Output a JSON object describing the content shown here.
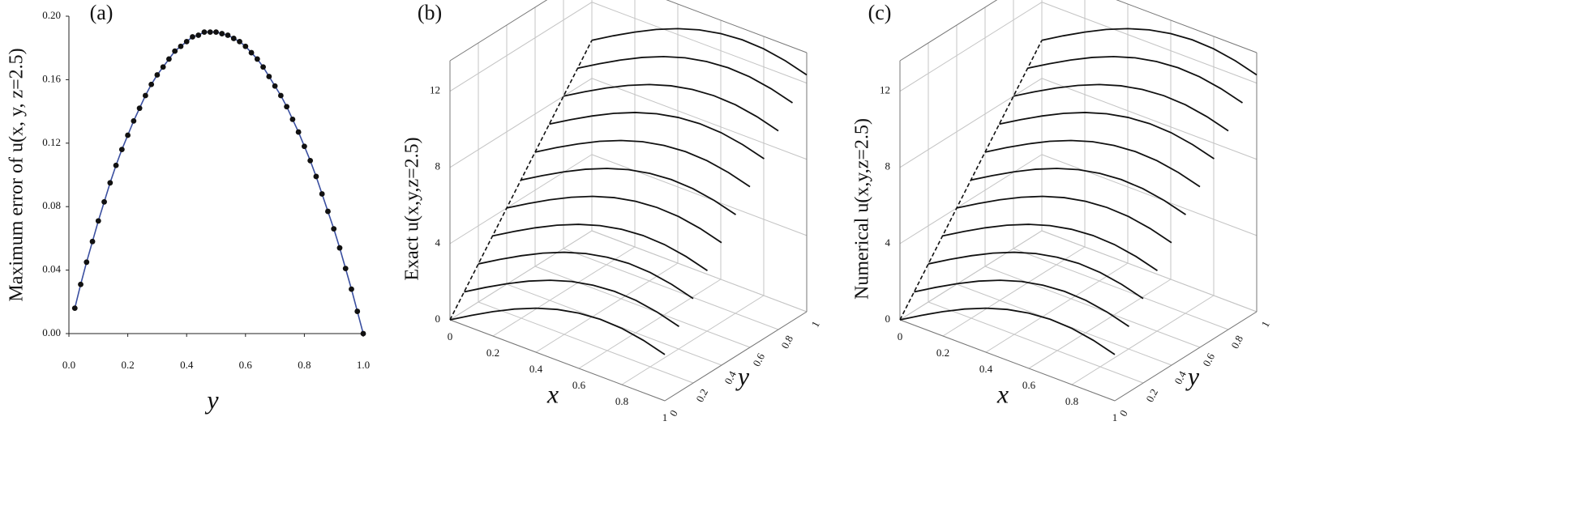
{
  "chart_data": [
    {
      "type": "line",
      "label": "(a)",
      "x_label": "y",
      "y_label": "Maximum error of  u(x, y, z=2.5)",
      "color": "#3a4fa0",
      "marker_color": "#111111",
      "x": [
        0.02,
        0.04,
        0.06,
        0.08,
        0.1,
        0.12,
        0.14,
        0.16,
        0.18,
        0.2,
        0.22,
        0.24,
        0.26,
        0.28,
        0.3,
        0.32,
        0.34,
        0.36,
        0.38,
        0.4,
        0.42,
        0.44,
        0.46,
        0.48,
        0.5,
        0.52,
        0.54,
        0.56,
        0.58,
        0.6,
        0.62,
        0.64,
        0.66,
        0.68,
        0.7,
        0.72,
        0.74,
        0.76,
        0.78,
        0.8,
        0.82,
        0.84,
        0.86,
        0.88,
        0.9,
        0.92,
        0.94,
        0.96,
        0.98,
        1.0
      ],
      "values": [
        0.016,
        0.031,
        0.045,
        0.058,
        0.071,
        0.083,
        0.095,
        0.106,
        0.116,
        0.125,
        0.134,
        0.142,
        0.15,
        0.157,
        0.163,
        0.168,
        0.173,
        0.178,
        0.181,
        0.184,
        0.187,
        0.188,
        0.19,
        0.19,
        0.19,
        0.189,
        0.188,
        0.186,
        0.184,
        0.181,
        0.177,
        0.173,
        0.168,
        0.162,
        0.156,
        0.15,
        0.143,
        0.135,
        0.127,
        0.118,
        0.109,
        0.099,
        0.088,
        0.077,
        0.066,
        0.054,
        0.041,
        0.028,
        0.014,
        0
      ],
      "xlim": [
        0,
        1
      ],
      "xticks": [
        {
          "value": 0,
          "label": "0.0"
        },
        {
          "value": 0.2,
          "label": "0.2"
        },
        {
          "value": 0.4,
          "label": "0.4"
        },
        {
          "value": 0.6,
          "label": "0.6"
        },
        {
          "value": 0.8,
          "label": "0.8"
        },
        {
          "value": 1,
          "label": "1.0"
        }
      ],
      "ylim": [
        0,
        0.2
      ],
      "yticks": [
        {
          "value": 0,
          "label": "0.00"
        },
        {
          "value": 0.04,
          "label": "0.04"
        },
        {
          "value": 0.08,
          "label": "0.08"
        },
        {
          "value": 0.12,
          "label": "0.12"
        },
        {
          "value": 0.16,
          "label": "0.16"
        },
        {
          "value": 0.2,
          "label": "0.20"
        }
      ]
    },
    {
      "type": "surface",
      "label": "(b)",
      "x_label": "x",
      "y_label": "y",
      "z_label": "Exact u(x,y,z=2.5)",
      "color": "#111111",
      "grid": true,
      "x": [
        0,
        0.1,
        0.2,
        0.3,
        0.4,
        0.5,
        0.6,
        0.7,
        0.8,
        0.9,
        1
      ],
      "y": [
        0,
        0.1,
        0.2,
        0.3,
        0.4,
        0.5,
        0.6,
        0.7,
        0.8,
        0.9,
        1
      ],
      "z": [
        [
          0,
          0.66,
          1.28,
          1.84,
          2.31,
          2.67,
          2.9,
          3,
          2.95,
          2.75,
          2.43
        ],
        [
          1,
          1.66,
          2.28,
          2.84,
          3.31,
          3.67,
          3.9,
          4,
          3.95,
          3.75,
          3.43
        ],
        [
          2,
          2.66,
          3.28,
          3.84,
          4.31,
          4.67,
          4.9,
          5,
          4.95,
          4.75,
          4.43
        ],
        [
          3,
          3.66,
          4.28,
          4.84,
          5.31,
          5.67,
          5.9,
          6,
          5.95,
          5.75,
          5.43
        ],
        [
          4,
          4.66,
          5.28,
          5.84,
          6.31,
          6.67,
          6.9,
          7,
          6.95,
          6.75,
          6.43
        ],
        [
          5,
          5.66,
          6.28,
          6.84,
          7.31,
          7.67,
          7.9,
          8,
          7.95,
          7.75,
          7.43
        ],
        [
          6,
          6.66,
          7.28,
          7.84,
          8.31,
          8.67,
          8.9,
          9,
          8.95,
          8.75,
          8.43
        ],
        [
          7,
          7.66,
          8.28,
          8.84,
          9.31,
          9.67,
          9.9,
          10,
          9.95,
          9.75,
          9.43
        ],
        [
          8,
          8.66,
          9.28,
          9.84,
          10.31,
          10.67,
          10.9,
          11,
          10.95,
          10.75,
          10.43
        ],
        [
          9,
          9.66,
          10.28,
          10.84,
          11.31,
          11.67,
          11.9,
          12,
          11.95,
          11.75,
          11.43
        ],
        [
          10,
          10.66,
          11.28,
          11.84,
          12.31,
          12.67,
          12.9,
          13,
          12.95,
          12.75,
          12.43
        ]
      ],
      "xlim": [
        0,
        1
      ],
      "ylim": [
        0,
        1
      ],
      "zlim": [
        0,
        13.6
      ],
      "xticks": [
        0,
        0.2,
        0.4,
        0.6,
        0.8,
        1
      ],
      "yticks": [
        0,
        0.2,
        0.4,
        0.6,
        0.8,
        1
      ],
      "zticks": [
        0,
        4,
        8,
        12
      ]
    },
    {
      "type": "surface",
      "label": "(c)",
      "x_label": "x",
      "y_label": "y",
      "z_label": "Numerical u(x,y,z=2.5)",
      "color": "#111111",
      "grid": true,
      "x": [
        0,
        0.1,
        0.2,
        0.3,
        0.4,
        0.5,
        0.6,
        0.7,
        0.8,
        0.9,
        1
      ],
      "y": [
        0,
        0.1,
        0.2,
        0.3,
        0.4,
        0.5,
        0.6,
        0.7,
        0.8,
        0.9,
        1
      ],
      "z": [
        [
          0,
          0.66,
          1.28,
          1.84,
          2.31,
          2.67,
          2.9,
          3,
          2.95,
          2.75,
          2.43
        ],
        [
          1,
          1.66,
          2.28,
          2.84,
          3.31,
          3.67,
          3.9,
          4,
          3.95,
          3.75,
          3.43
        ],
        [
          2,
          2.66,
          3.28,
          3.84,
          4.31,
          4.67,
          4.9,
          5,
          4.95,
          4.75,
          4.43
        ],
        [
          3,
          3.66,
          4.28,
          4.84,
          5.31,
          5.67,
          5.9,
          6,
          5.95,
          5.75,
          5.43
        ],
        [
          4,
          4.66,
          5.28,
          5.84,
          6.31,
          6.67,
          6.9,
          7,
          6.95,
          6.75,
          6.43
        ],
        [
          5,
          5.66,
          6.28,
          6.84,
          7.31,
          7.67,
          7.9,
          8,
          7.95,
          7.75,
          7.43
        ],
        [
          6,
          6.66,
          7.28,
          7.84,
          8.31,
          8.67,
          8.9,
          9,
          8.95,
          8.75,
          8.43
        ],
        [
          7,
          7.66,
          8.28,
          8.84,
          9.31,
          9.67,
          9.9,
          10,
          9.95,
          9.75,
          9.43
        ],
        [
          8,
          8.66,
          9.28,
          9.84,
          10.31,
          10.67,
          10.9,
          11,
          10.95,
          10.75,
          10.43
        ],
        [
          9,
          9.66,
          10.28,
          10.84,
          11.31,
          11.67,
          11.9,
          12,
          11.95,
          11.75,
          11.43
        ],
        [
          10,
          10.66,
          11.28,
          11.84,
          12.31,
          12.67,
          12.9,
          13,
          12.95,
          12.75,
          12.43
        ]
      ],
      "xlim": [
        0,
        1
      ],
      "ylim": [
        0,
        1
      ],
      "zlim": [
        0,
        13.6
      ],
      "xticks": [
        0,
        0.2,
        0.4,
        0.6,
        0.8,
        1
      ],
      "yticks": [
        0,
        0.2,
        0.4,
        0.6,
        0.8,
        1
      ],
      "zticks": [
        0,
        4,
        8,
        12
      ]
    }
  ]
}
